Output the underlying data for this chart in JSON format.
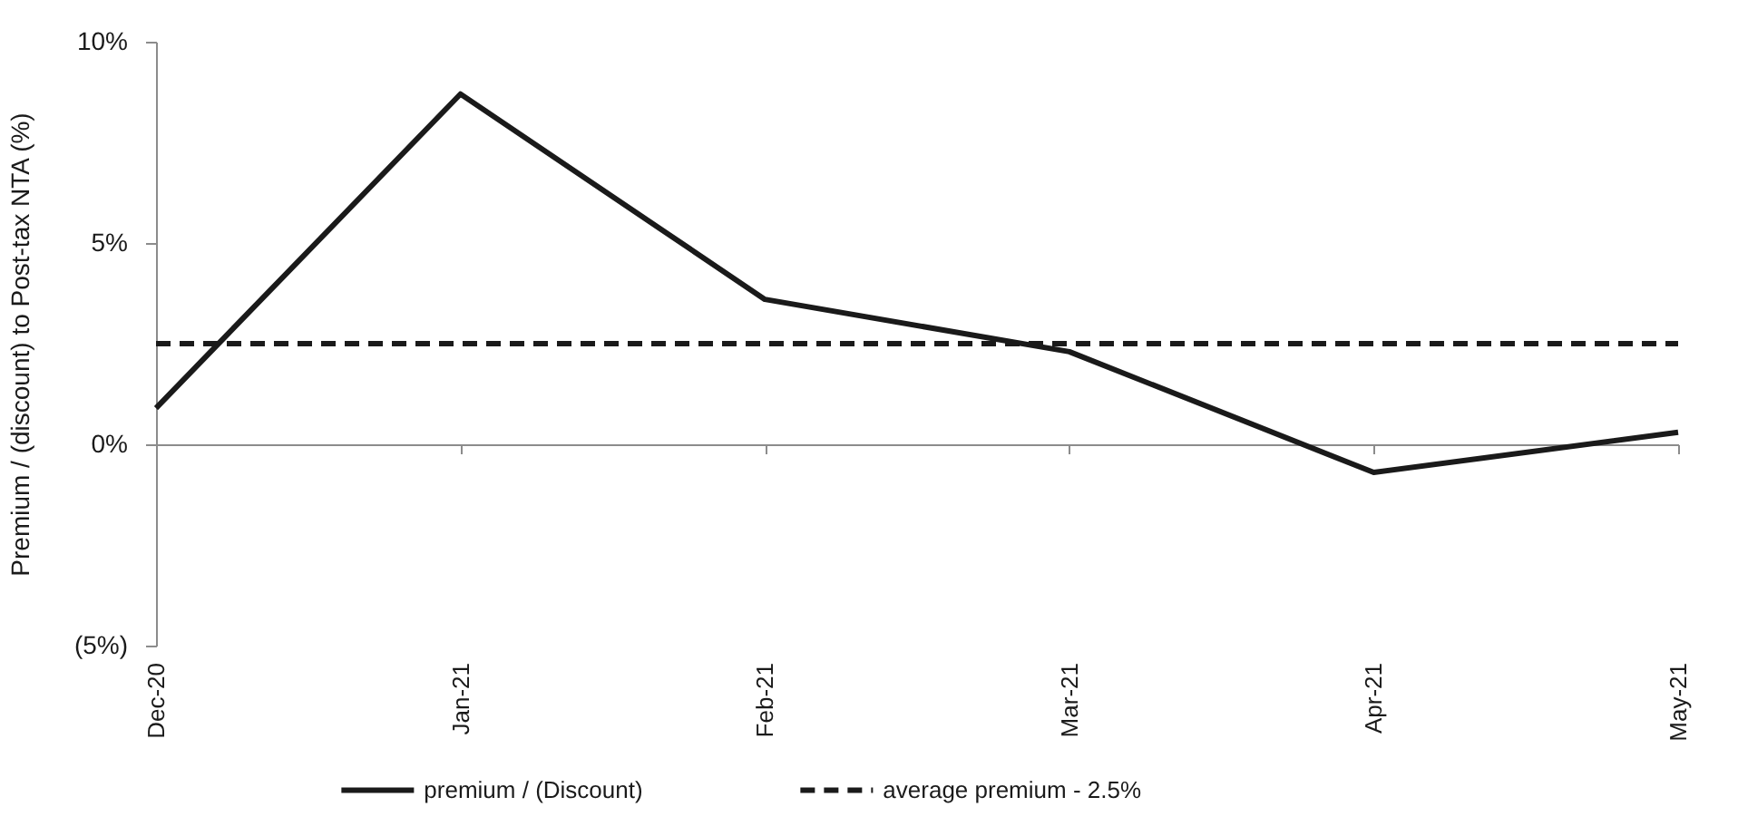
{
  "chart_data": {
    "type": "line",
    "ylabel": "Premium / (discount) to Post-tax NTA (%)",
    "categories": [
      "Dec-20",
      "Jan-21",
      "Feb-21",
      "Mar-21",
      "Apr-21",
      "May-21"
    ],
    "series": [
      {
        "name": "premium / (Discount)",
        "color": "#1a1a1a",
        "values": [
          0.9,
          8.7,
          3.6,
          2.3,
          -0.7,
          0.3
        ]
      },
      {
        "name": "average premium - 2.5%",
        "color": "#1a1a1a",
        "line_style": "dashed",
        "values": [
          2.5,
          2.5,
          2.5,
          2.5,
          2.5,
          2.5
        ]
      }
    ],
    "ylim": [
      -5,
      10
    ],
    "yticks": [
      {
        "value": -5,
        "label": "(5%)"
      },
      {
        "value": 0,
        "label": "0%"
      },
      {
        "value": 5,
        "label": "5%"
      },
      {
        "value": 10,
        "label": "10%"
      }
    ],
    "legend": "bottom",
    "line_style": "solid"
  }
}
